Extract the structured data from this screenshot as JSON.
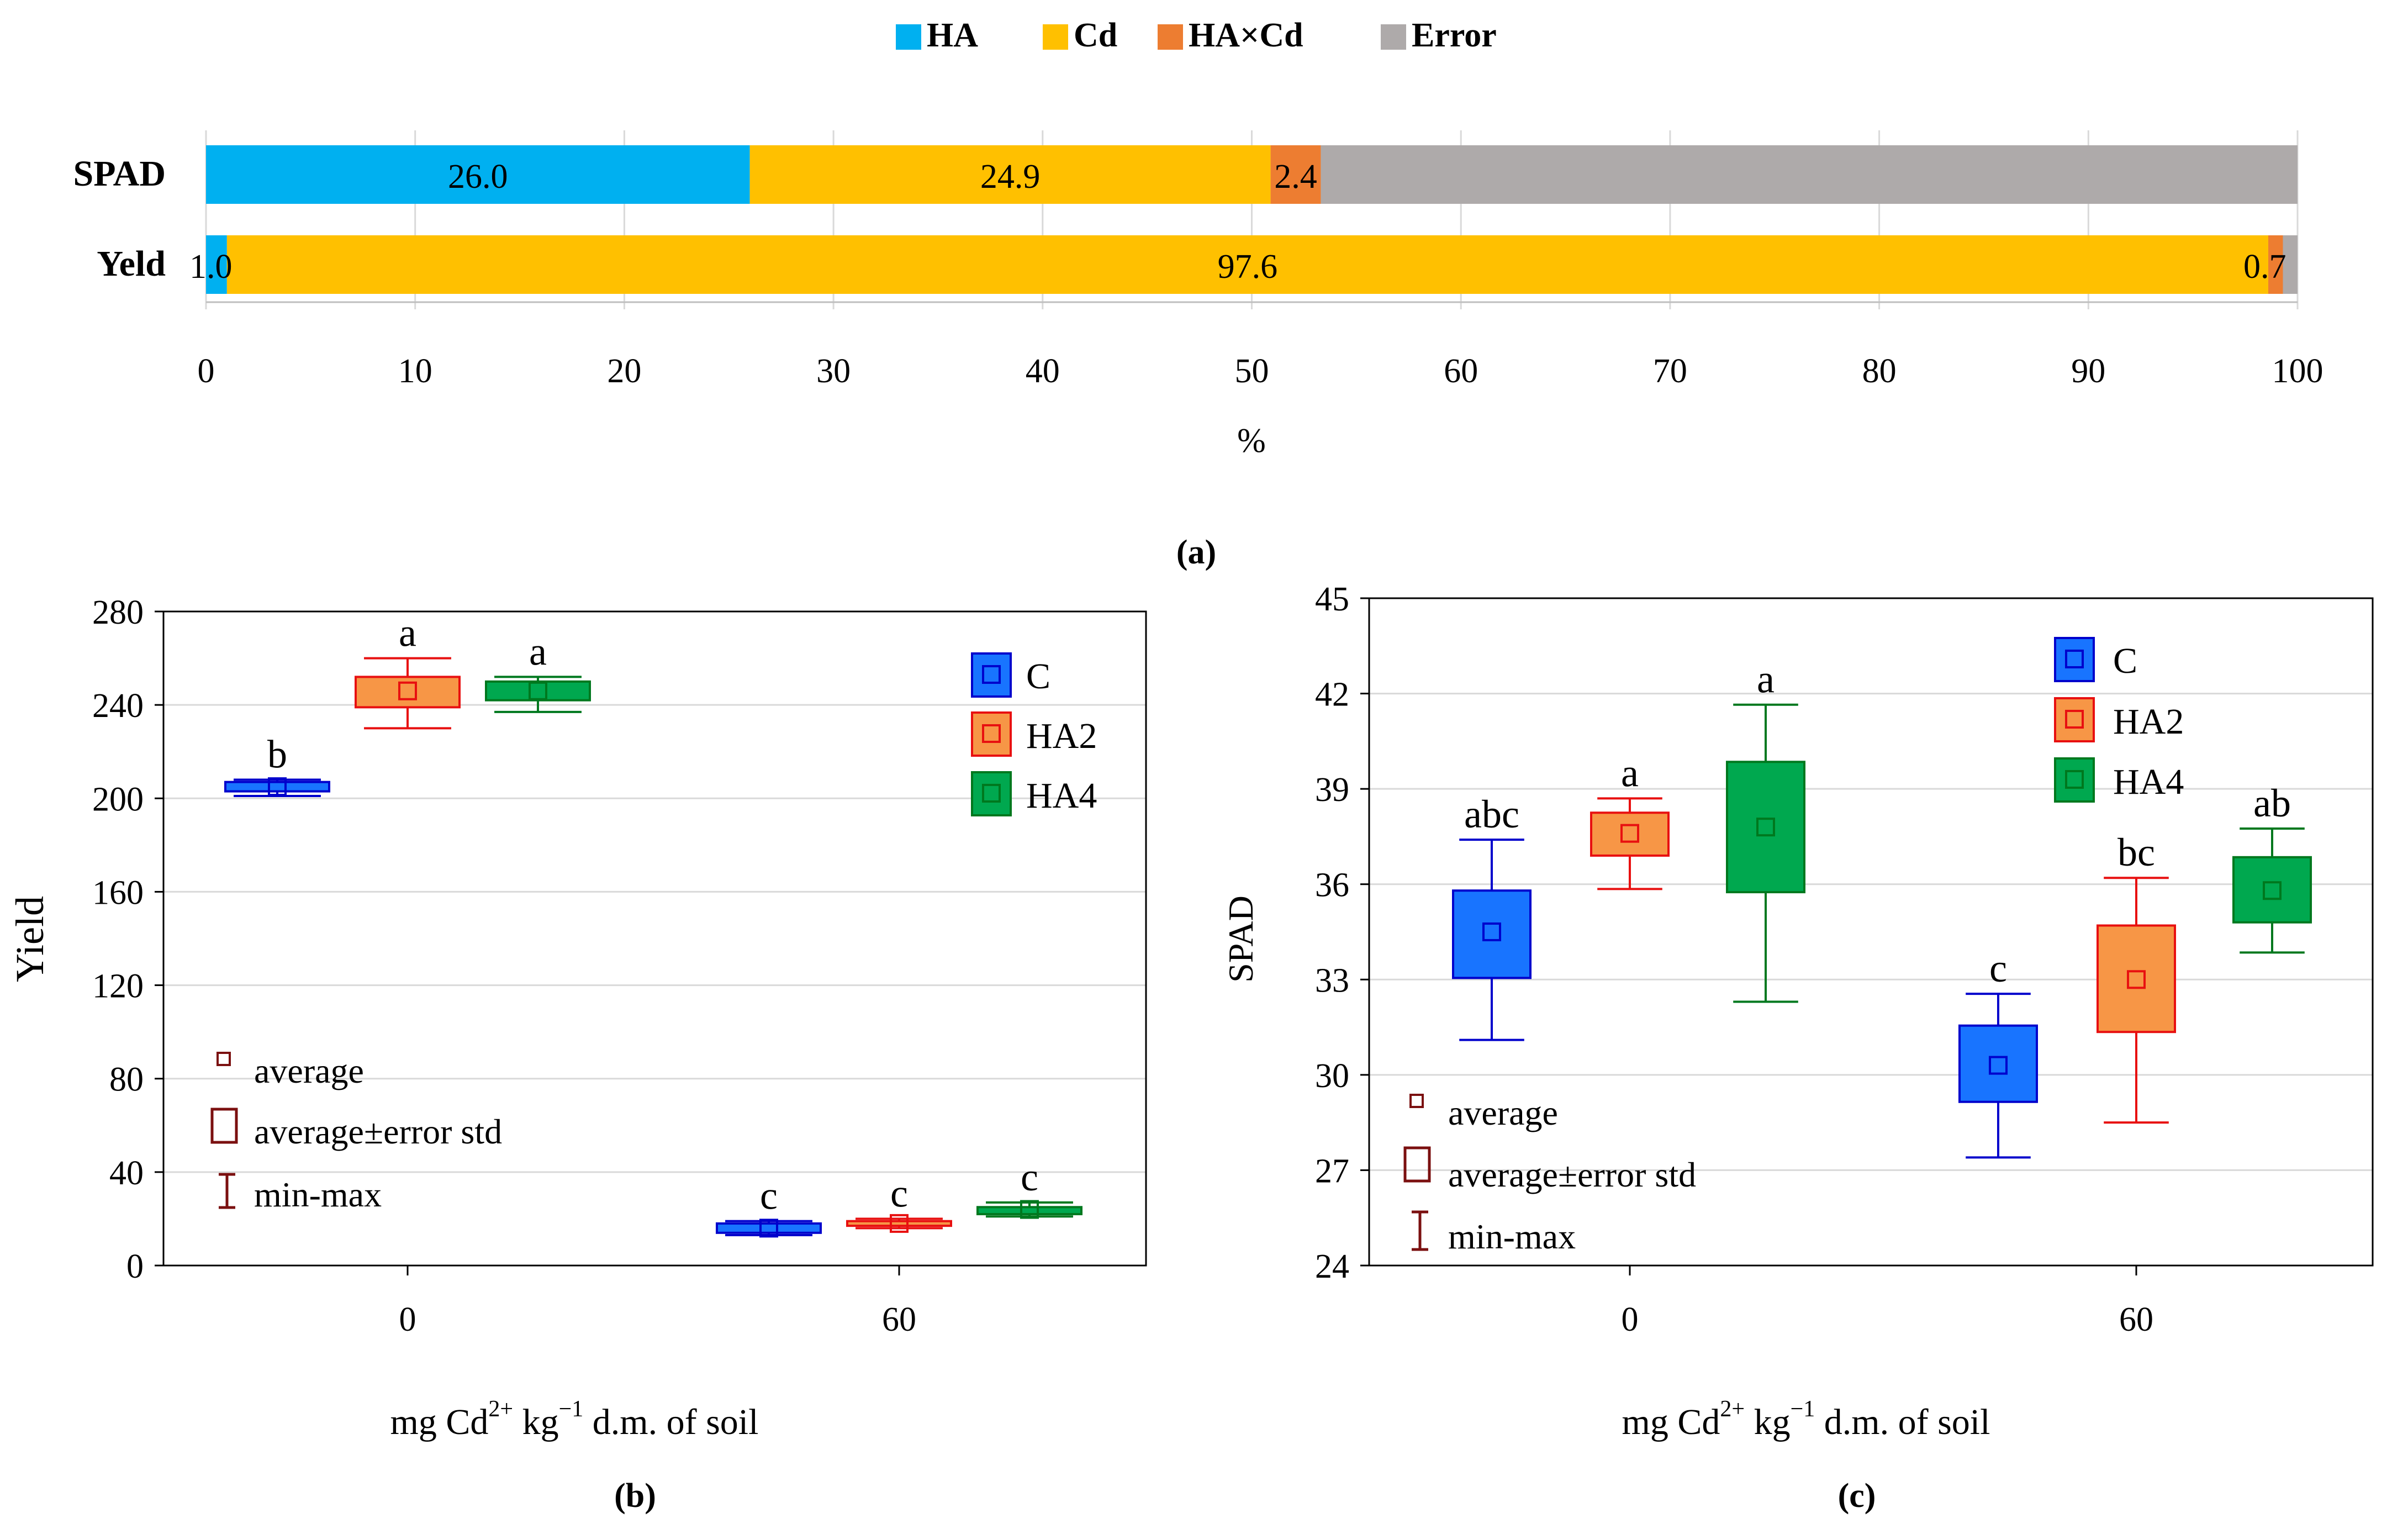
{
  "colors": {
    "HA": "#00B0F0",
    "Cd": "#FFC000",
    "HAxCd": "#ED7D31",
    "Error": "#AEAAAA",
    "C": "#1874FF",
    "C_stroke": "#0000CC",
    "HA2": "#F79646",
    "HA2_stroke": "#E81010",
    "HA4": "#00A84F",
    "HA4_stroke": "#00781E",
    "avg_marker": "#7B1010",
    "grid": "#D9D9D9",
    "axis": "#000000"
  },
  "chart_data": [
    {
      "id": "a",
      "type": "bar",
      "orientation": "horizontal",
      "stacked": true,
      "panel_label": "(a)",
      "legend": [
        "HA",
        "Cd",
        "HA×Cd",
        "Error"
      ],
      "legend_position": "top-center",
      "categories": [
        "SPAD",
        "Yeld"
      ],
      "series": [
        {
          "name": "HA",
          "values": [
            26.0,
            1.0
          ],
          "labels": [
            "26.0",
            "1.0"
          ]
        },
        {
          "name": "Cd",
          "values": [
            24.9,
            97.6
          ],
          "labels": [
            "24.9",
            "97.6"
          ]
        },
        {
          "name": "HA×Cd",
          "values": [
            2.4,
            0.7
          ],
          "labels": [
            "2.4",
            "0.7"
          ]
        },
        {
          "name": "Error",
          "values": [
            46.7,
            0.7
          ],
          "labels": [
            "",
            ""
          ]
        }
      ],
      "xlim": [
        0,
        100
      ],
      "xticks": [
        "0",
        "10",
        "20",
        "30",
        "40",
        "50",
        "60",
        "70",
        "80",
        "90",
        "100"
      ],
      "xlabel": "%",
      "grid": true
    },
    {
      "id": "b",
      "type": "box",
      "panel_label": "(b)",
      "ylabel": "Yield",
      "xlabel_parts": [
        "mg Cd",
        "2+",
        " kg",
        "−1",
        " d.m. of soil"
      ],
      "ylim": [
        0,
        280
      ],
      "yticks": [
        "0",
        "40",
        "80",
        "120",
        "160",
        "200",
        "240",
        "280"
      ],
      "groups": [
        "0",
        "60"
      ],
      "series_names": [
        "C",
        "HA2",
        "HA4"
      ],
      "boxes": [
        {
          "group": "0",
          "series": "C",
          "mean": 205,
          "box": [
            203,
            207
          ],
          "whisker": [
            201,
            208
          ],
          "letter": "b"
        },
        {
          "group": "0",
          "series": "HA2",
          "mean": 246,
          "box": [
            239,
            252
          ],
          "whisker": [
            230,
            260
          ],
          "letter": "a"
        },
        {
          "group": "0",
          "series": "HA4",
          "mean": 246,
          "box": [
            242,
            250
          ],
          "whisker": [
            237,
            252
          ],
          "letter": "a"
        },
        {
          "group": "60",
          "series": "C",
          "mean": 16,
          "box": [
            14,
            18
          ],
          "whisker": [
            13,
            19
          ],
          "letter": "c"
        },
        {
          "group": "60",
          "series": "HA2",
          "mean": 18,
          "box": [
            17,
            19
          ],
          "whisker": [
            16,
            20
          ],
          "letter": "c"
        },
        {
          "group": "60",
          "series": "HA4",
          "mean": 24,
          "box": [
            22,
            25
          ],
          "whisker": [
            21,
            27
          ],
          "letter": "c"
        }
      ],
      "legend": [
        "C",
        "HA2",
        "HA4"
      ],
      "legend_position": "top-right",
      "stats_legend": [
        "average",
        "average±error std",
        "min-max"
      ],
      "stats_legend_position": "bottom-left"
    },
    {
      "id": "c",
      "type": "box",
      "panel_label": "(c)",
      "ylabel": "SPAD",
      "xlabel_parts": [
        "mg Cd",
        "2+",
        " kg",
        "−1",
        " d.m. of soil"
      ],
      "ylim": [
        24,
        45
      ],
      "yticks": [
        "24",
        "27",
        "30",
        "33",
        "36",
        "39",
        "42",
        "45"
      ],
      "groups": [
        "0",
        "60"
      ],
      "series_names": [
        "C",
        "HA2",
        "HA4"
      ],
      "boxes": [
        {
          "group": "0",
          "series": "C",
          "mean": 34.5,
          "box": [
            33.05,
            35.8
          ],
          "whisker": [
            31.1,
            37.4
          ],
          "letter": "abc"
        },
        {
          "group": "0",
          "series": "HA2",
          "mean": 37.6,
          "box": [
            36.9,
            38.25
          ],
          "whisker": [
            35.85,
            38.7
          ],
          "letter": "a"
        },
        {
          "group": "0",
          "series": "HA4",
          "mean": 37.8,
          "box": [
            35.75,
            39.85
          ],
          "whisker": [
            32.3,
            41.65
          ],
          "letter": "a"
        },
        {
          "group": "60",
          "series": "C",
          "mean": 30.3,
          "box": [
            29.15,
            31.55
          ],
          "whisker": [
            27.4,
            32.55
          ],
          "letter": "c"
        },
        {
          "group": "60",
          "series": "HA2",
          "mean": 33.0,
          "box": [
            31.35,
            34.7
          ],
          "whisker": [
            28.5,
            36.2
          ],
          "letter": "bc"
        },
        {
          "group": "60",
          "series": "HA4",
          "mean": 35.8,
          "box": [
            34.8,
            36.85
          ],
          "whisker": [
            33.85,
            37.75
          ],
          "letter": "ab"
        }
      ],
      "legend": [
        "C",
        "HA2",
        "HA4"
      ],
      "legend_position": "top-right",
      "stats_legend": [
        "average",
        "average±error std",
        "min-max"
      ],
      "stats_legend_position": "bottom-left"
    }
  ]
}
